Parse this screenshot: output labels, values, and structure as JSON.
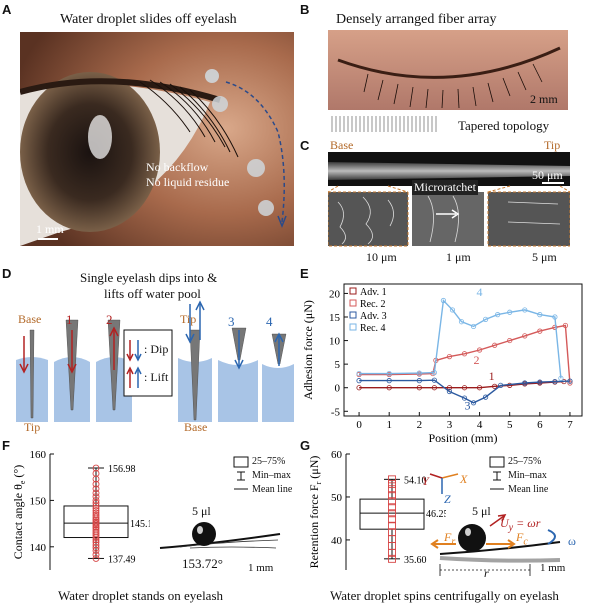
{
  "panel_a": {
    "label": "A",
    "title": "Water droplet slides off eyelash",
    "note1": "No backflow",
    "note2": "No liquid residue",
    "scale": "1 mm"
  },
  "panel_b": {
    "label": "B",
    "title": "Densely arranged fiber array",
    "scale": "2 mm",
    "topology": "Tapered topology"
  },
  "panel_c": {
    "label": "C",
    "base": "Base",
    "tip": "Tip",
    "scale_top": "50 μm",
    "microratchet": "Microratchet",
    "scale1": "10 μm",
    "scale2": "1 μm",
    "scale3": "5 μm"
  },
  "panel_d": {
    "label": "D",
    "title1": "Single eyelash dips into &",
    "title2": "lifts off water pool",
    "base_left": "Base",
    "tip_left": "Tip",
    "tip_right": "Tip",
    "base_right": "Base",
    "n1": "1",
    "n2": "2",
    "n3": "3",
    "n4": "4",
    "dip": ": Dip",
    "lift": ": Lift"
  },
  "panel_e": {
    "label": "E"
  },
  "panel_f": {
    "label": "F",
    "caption": "Water droplet stands on eyelash",
    "box_legend": "25–75%",
    "whisker_legend": "Min–max",
    "mean_legend": "Mean line",
    "max_val": "156.98",
    "mean_val": "145.11",
    "min_val": "137.49",
    "volume": "5 μl",
    "angle": "153.72°",
    "scale": "1 mm"
  },
  "panel_g": {
    "label": "G",
    "caption": "Water droplet spins centrifugally on eyelash",
    "box_legend": "25–75%",
    "whisker_legend": "Min–max",
    "mean_legend": "Mean line",
    "max_val": "54.10",
    "mean_val": "46.25",
    "min_val": "35.60",
    "volume": "5 μl",
    "axis_y": "Y",
    "axis_x": "X",
    "axis_z": "Z",
    "uy": "U",
    "uy_sub": "y",
    "uy_eq": " = ωr",
    "ft": "F",
    "ft_sub": "r",
    "fc": "F",
    "fc_sub": "c",
    "omega": "ω",
    "r": "r",
    "scale": "1 mm"
  },
  "chart_data": [
    {
      "type": "line",
      "panel": "E",
      "xlabel": "Position (mm)",
      "ylabel": "Adhesion force (μN)",
      "xlim": [
        -0.5,
        7.4
      ],
      "ylim": [
        -6,
        22
      ],
      "xticks": [
        0,
        1,
        2,
        3,
        4,
        5,
        6,
        7
      ],
      "yticks": [
        -5,
        0,
        5,
        10,
        15,
        20
      ],
      "legend_position": "top-left",
      "series": [
        {
          "name": "Adv. 1",
          "color": "#9b1c1c",
          "x": [
            0,
            1,
            2,
            2.5,
            3,
            3.5,
            4,
            4.5,
            5,
            5.5,
            6,
            6.5,
            6.8
          ],
          "y": [
            0,
            0,
            0,
            0,
            0,
            0,
            0,
            0.3,
            0.5,
            0.8,
            1.0,
            1.2,
            1.3
          ]
        },
        {
          "name": "Rec. 2",
          "color": "#d45a5a",
          "x": [
            0,
            1,
            2,
            2.45,
            2.55,
            3,
            3.5,
            4,
            4.5,
            5,
            5.5,
            6,
            6.5,
            6.85,
            7.0
          ],
          "y": [
            2.8,
            2.8,
            2.9,
            3.0,
            5.8,
            6.6,
            7.2,
            8.0,
            9.0,
            10.0,
            11.0,
            12.0,
            12.8,
            13.2,
            1.0
          ]
        },
        {
          "name": "Adv. 3",
          "color": "#2c5aa0",
          "x": [
            0,
            1,
            2,
            2.5,
            3,
            3.5,
            3.8,
            4.2,
            4.7,
            5.5,
            6,
            6.5,
            7
          ],
          "y": [
            1.5,
            1.5,
            1.5,
            1.6,
            -0.8,
            -2.2,
            -3.2,
            -2.0,
            0.5,
            1.0,
            1.2,
            1.3,
            1.4
          ]
        },
        {
          "name": "Rec. 4",
          "color": "#7ab6e6",
          "x": [
            0,
            1,
            2,
            2.5,
            2.8,
            3.1,
            3.4,
            3.8,
            4.2,
            4.6,
            5,
            5.5,
            6,
            6.5,
            6.7
          ],
          "y": [
            3.0,
            3.0,
            3.1,
            3.2,
            18.5,
            16.5,
            14.0,
            13.0,
            14.5,
            15.5,
            16.0,
            16.5,
            15.5,
            15.0,
            2.0
          ]
        }
      ],
      "annotations": [
        "1",
        "2",
        "3",
        "4"
      ]
    },
    {
      "type": "box",
      "panel": "F",
      "ylabel": "Contact angle θ",
      "ylabel_sub": "e",
      "ylabel_unit": "(°)",
      "ylim": [
        135,
        160
      ],
      "yticks": [
        140,
        150,
        160
      ],
      "max": 156.98,
      "mean": 145.11,
      "min": 137.49,
      "q1": 142.0,
      "median": 145.0,
      "q3": 148.8,
      "points": [
        137.5,
        138.3,
        139.2,
        139.8,
        140.4,
        141.0,
        141.5,
        142.0,
        142.4,
        142.8,
        143.2,
        143.6,
        144.0,
        144.3,
        144.7,
        145.0,
        145.3,
        145.7,
        146.0,
        146.4,
        146.8,
        147.3,
        147.8,
        148.3,
        148.8,
        149.4,
        150.0,
        150.8,
        151.6,
        152.5,
        153.5,
        154.6,
        155.8,
        156.98
      ]
    },
    {
      "type": "box",
      "panel": "G",
      "ylabel": "Retention force F",
      "ylabel_sub": "r",
      "ylabel_unit": "(μN)",
      "ylim": [
        33,
        60
      ],
      "yticks": [
        40,
        50,
        60
      ],
      "max": 54.1,
      "mean": 46.25,
      "min": 35.6,
      "q1": 42.5,
      "median": 46.3,
      "q3": 49.5,
      "points": [
        35.6,
        37.0,
        38.6,
        40.2,
        41.8,
        43.3,
        44.8,
        46.2,
        47.6,
        49.0,
        50.4,
        51.8,
        53.0,
        54.1
      ]
    }
  ]
}
